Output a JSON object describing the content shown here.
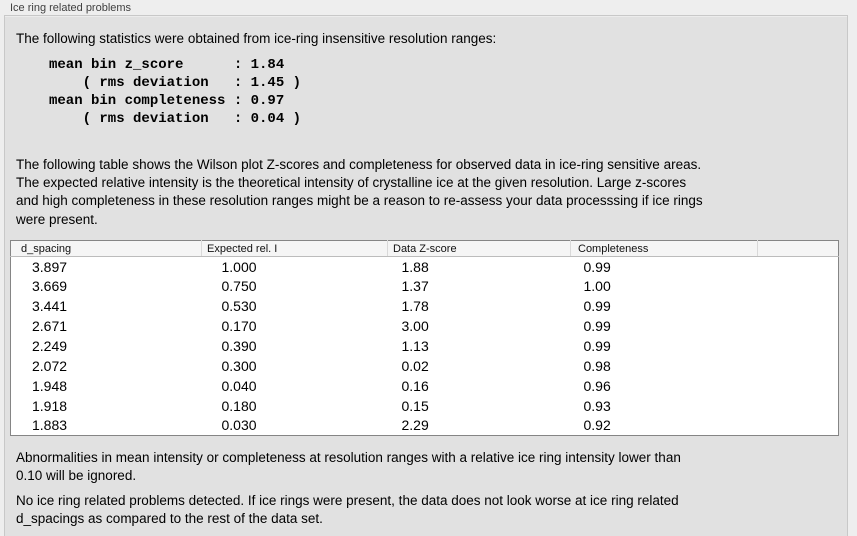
{
  "panel": {
    "title": "Ice ring related problems"
  },
  "intro": "The following statistics were obtained from ice-ring insensitive resolution ranges:",
  "stats_block": "mean bin z_score      : 1.84\n    ( rms deviation   : 1.45 )\nmean bin completeness : 0.97\n    ( rms deviation   : 0.04 )",
  "table_intro": "The following table shows the Wilson plot Z-scores and completeness for observed data in ice-ring sensitive areas.\nThe expected relative intensity is the theoretical intensity of crystalline ice at the given resolution. Large z-scores\nand high completeness in these resolution ranges might be a reason to re-assess your data processsing if ice rings\nwere present.",
  "table": {
    "columns": [
      "d_spacing",
      "Expected rel. I",
      "Data Z-score",
      "Completeness",
      ""
    ],
    "rows": [
      [
        "3.897",
        "1.000",
        "1.88",
        "0.99"
      ],
      [
        "3.669",
        "0.750",
        "1.37",
        "1.00"
      ],
      [
        "3.441",
        "0.530",
        "1.78",
        "0.99"
      ],
      [
        "2.671",
        "0.170",
        "3.00",
        "0.99"
      ],
      [
        "2.249",
        "0.390",
        "1.13",
        "0.99"
      ],
      [
        "2.072",
        "0.300",
        "0.02",
        "0.98"
      ],
      [
        "1.948",
        "0.040",
        "0.16",
        "0.96"
      ],
      [
        "1.918",
        "0.180",
        "0.15",
        "0.93"
      ],
      [
        "1.883",
        "0.030",
        "2.29",
        "0.92"
      ]
    ]
  },
  "note": "Abnormalities in mean intensity or completeness at resolution ranges with a relative ice ring intensity lower than\n0.10 will be ignored.",
  "conclusion": "No ice ring related problems detected. If ice rings were present, the data does not look worse at ice ring related\nd_spacings as compared to the rest of the data set."
}
